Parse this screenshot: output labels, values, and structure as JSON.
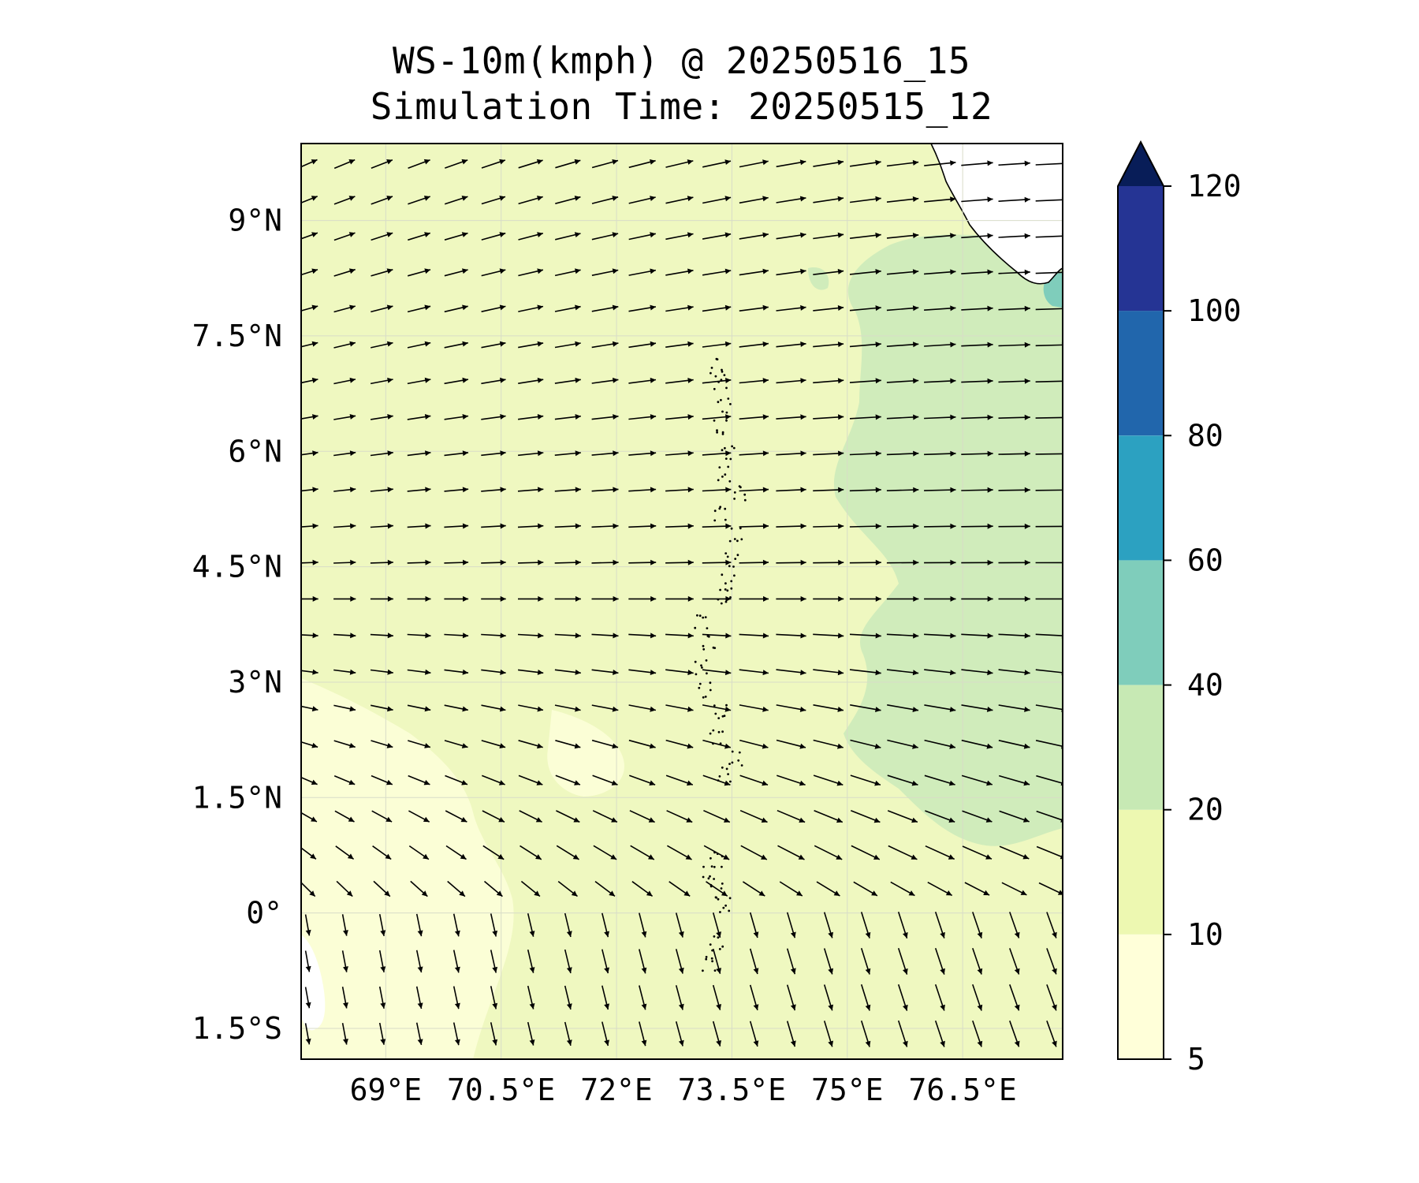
{
  "title": {
    "line1": "WS-10m(kmph) @ 20250516_15",
    "line2": "Simulation Time: 20250515_12"
  },
  "map": {
    "lat_range": [
      -1.9,
      10.0
    ],
    "lon_range": [
      67.9,
      77.8
    ],
    "lat_ticks": [
      {
        "value": 9.0,
        "label": "9°N"
      },
      {
        "value": 7.5,
        "label": "7.5°N"
      },
      {
        "value": 6.0,
        "label": "6°N"
      },
      {
        "value": 4.5,
        "label": "4.5°N"
      },
      {
        "value": 3.0,
        "label": "3°N"
      },
      {
        "value": 1.5,
        "label": "1.5°N"
      },
      {
        "value": 0.0,
        "label": "0°"
      },
      {
        "value": -1.5,
        "label": "1.5°S"
      }
    ],
    "lon_ticks": [
      {
        "value": 69.0,
        "label": "69°E"
      },
      {
        "value": 70.5,
        "label": "70.5°E"
      },
      {
        "value": 72.0,
        "label": "72°E"
      },
      {
        "value": 73.5,
        "label": "73.5°E"
      },
      {
        "value": 75.0,
        "label": "75°E"
      },
      {
        "value": 76.5,
        "label": "76.5°E"
      }
    ],
    "grid": true
  },
  "colorbar": {
    "levels": [
      5,
      10,
      20,
      40,
      60,
      80,
      100,
      120
    ],
    "tick_labels": [
      "5",
      "10",
      "20",
      "40",
      "60",
      "80",
      "100",
      "120"
    ],
    "colors": [
      "#ffffd9",
      "#edf8b1",
      "#c7e9b4",
      "#7fcdbb",
      "#2ca1c1",
      "#2166ac",
      "#253494",
      "#081d58"
    ],
    "extend": "max"
  },
  "colors": {
    "speed_5_10": "#ffffd9",
    "speed_10_20": "#eff8c0",
    "speed_20_40": "#d0ecbb",
    "speed_40_60": "#7fcdbb",
    "land": "#ffffff",
    "arrow": "#000000"
  }
}
